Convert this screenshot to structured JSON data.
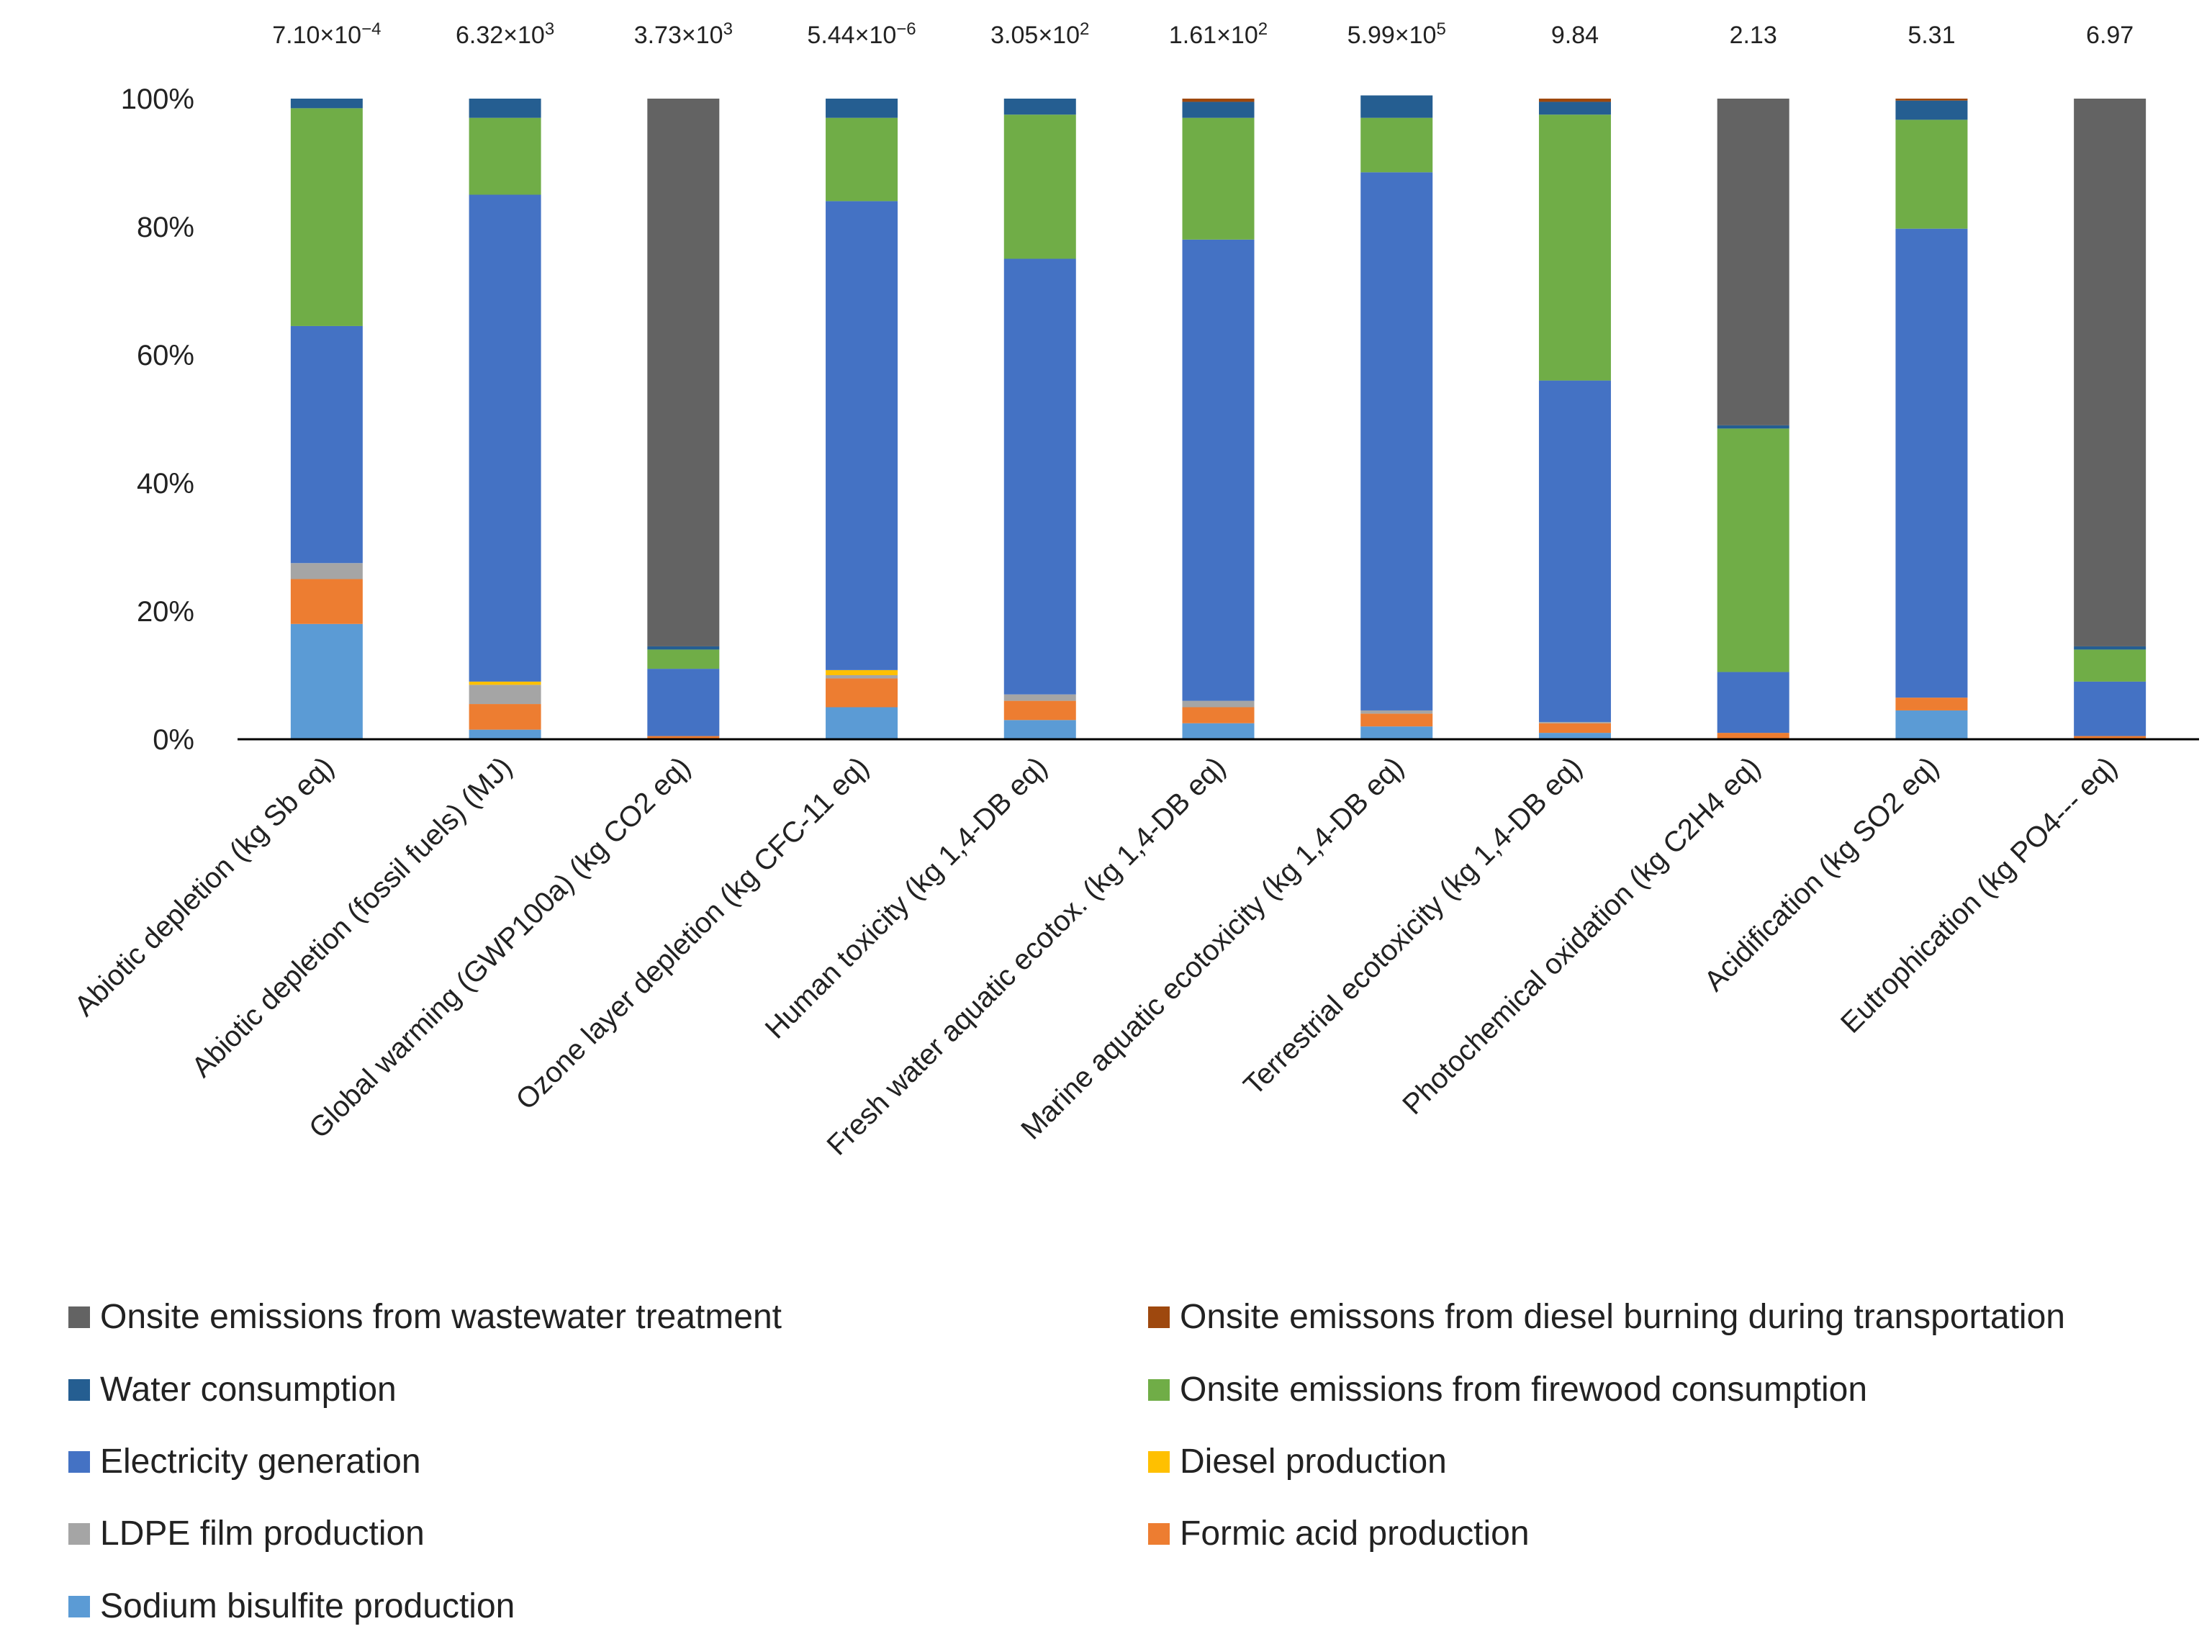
{
  "chart_data": {
    "type": "bar",
    "stacked": true,
    "percent": true,
    "ylim": [
      0,
      100
    ],
    "yticks": [
      "0%",
      "20%",
      "40%",
      "60%",
      "80%",
      "100%"
    ],
    "categories": [
      "Abiotic depletion (kg Sb eq)",
      "Abiotic depletion (fossil fuels) (MJ)",
      "Global warming (GWP100a) (kg CO2 eq)",
      "Ozone layer depletion (kg CFC-11 eq)",
      "Human toxicity (kg 1,4-DB eq)",
      "Fresh water aquatic ecotox. (kg 1,4-DB eq)",
      "Marine aquatic ecotoxicity (kg 1,4-DB eq)",
      "Terrestrial ecotoxicity (kg 1,4-DB eq)",
      "Photochemical oxidation (kg C2H4 eq)",
      "Acidification (kg SO2 eq)",
      "Eutrophication (kg PO4--- eq)"
    ],
    "totals": [
      {
        "mantissa": "7.10",
        "exponent": "−4"
      },
      {
        "mantissa": "6.32",
        "exponent": "3"
      },
      {
        "mantissa": "3.73",
        "exponent": "3"
      },
      {
        "mantissa": "5.44",
        "exponent": "−6"
      },
      {
        "mantissa": "3.05",
        "exponent": "2"
      },
      {
        "mantissa": "1.61",
        "exponent": "2"
      },
      {
        "mantissa": "5.99",
        "exponent": "5"
      },
      {
        "mantissa": "9.84",
        "exponent": ""
      },
      {
        "mantissa": "2.13",
        "exponent": ""
      },
      {
        "mantissa": "5.31",
        "exponent": ""
      },
      {
        "mantissa": "6.97",
        "exponent": ""
      }
    ],
    "series": [
      {
        "name": "Sodium bisulfite production",
        "color": "#5B9BD5",
        "values": [
          18,
          1.5,
          0,
          5,
          3,
          2.5,
          2,
          1,
          0,
          4.5,
          0
        ]
      },
      {
        "name": "Formic acid production",
        "color": "#ED7D31",
        "values": [
          7,
          4,
          0.5,
          4.5,
          3,
          2.5,
          2,
          1.5,
          1,
          2,
          0.5
        ]
      },
      {
        "name": "LDPE film production",
        "color": "#A5A5A5",
        "values": [
          2.5,
          3,
          0,
          0.5,
          1,
          1,
          0.5,
          0.2,
          0,
          0,
          0
        ]
      },
      {
        "name": "Diesel production",
        "color": "#FFC000",
        "values": [
          0,
          0.5,
          0,
          0.8,
          0,
          0,
          0,
          0,
          0,
          0,
          0
        ]
      },
      {
        "name": "Electricity generation",
        "color": "#4472C4",
        "values": [
          37,
          76,
          10.5,
          73.2,
          68,
          72,
          84,
          53.3,
          9.5,
          73.2,
          8.5
        ]
      },
      {
        "name": "Onsite emissions from firewood consumption",
        "color": "#70AD47",
        "values": [
          34,
          12,
          3,
          13,
          22.5,
          19,
          8.5,
          41.5,
          38,
          17,
          5
        ]
      },
      {
        "name": "Water consumption",
        "color": "#255E91",
        "values": [
          1.5,
          3,
          0.5,
          3,
          2.5,
          2.5,
          3.5,
          2,
          0.5,
          3,
          0.5
        ]
      },
      {
        "name": "Onsite emissons from diesel burning during transportation",
        "color": "#9E480E",
        "values": [
          0,
          0,
          0,
          0,
          0,
          0.5,
          0,
          0.5,
          0,
          0.3,
          0
        ]
      },
      {
        "name": "Onsite emissions from wastewater treatment",
        "color": "#636363",
        "values": [
          0,
          0,
          85.5,
          0,
          0,
          0,
          0,
          0,
          51,
          0,
          85.5
        ]
      }
    ],
    "legend_order": [
      8,
      7,
      6,
      5,
      4,
      3,
      2,
      1,
      0
    ],
    "legend_position": "bottom, two columns"
  }
}
